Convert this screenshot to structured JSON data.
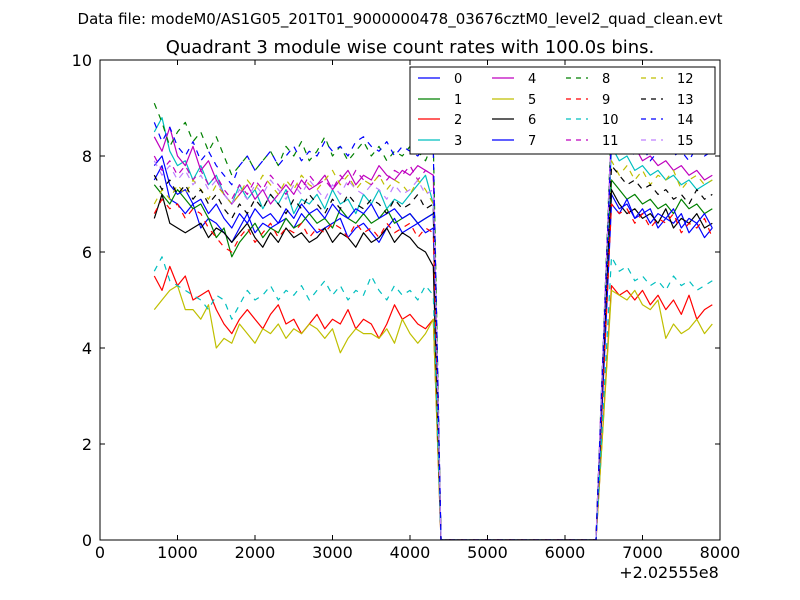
{
  "header": {
    "file_label": "Data file: modeM0/AS1G05_201T01_9000000478_03676cztM0_level2_quad_clean.evt"
  },
  "chart_data": {
    "type": "line",
    "title": "Quadrant 3 module wise count rates with 100.0s bins.",
    "xlabel": "",
    "ylabel": "",
    "x_offset_label": "+2.02555e8",
    "xlim": [
      0,
      8000
    ],
    "ylim": [
      0,
      10
    ],
    "xticks": [
      0,
      1000,
      2000,
      3000,
      4000,
      5000,
      6000,
      7000,
      8000
    ],
    "yticks": [
      0,
      2,
      4,
      6,
      8,
      10
    ],
    "legend_position": "top-right",
    "legend_columns": 4,
    "gap": {
      "drop_start": 4300,
      "zero_start": 4400,
      "zero_end": 6400,
      "rise_end": 6600
    },
    "x_segment_1": {
      "start": 700,
      "step": 100,
      "count": 37
    },
    "x_segment_2": {
      "start": 6600,
      "step": 100,
      "count": 14
    },
    "series": [
      {
        "name": "0",
        "color": "#0000ff",
        "dash": "solid",
        "seg1": [
          7.5,
          7.8,
          7.1,
          7.0,
          6.8,
          7.0,
          6.5,
          6.7,
          6.6,
          6.4,
          6.2,
          6.5,
          6.8,
          6.4,
          6.6,
          6.5,
          6.6,
          6.7,
          6.5,
          6.8,
          6.6,
          6.4,
          6.5,
          6.6,
          6.7,
          6.3,
          6.5,
          6.6,
          6.4,
          6.2,
          6.5,
          6.7,
          6.4,
          6.5,
          6.6,
          6.4,
          6.5
        ],
        "seg2": [
          7.2,
          6.9,
          7.0,
          6.7,
          6.8,
          6.9,
          6.5,
          6.7,
          6.6,
          6.8,
          6.4,
          6.6,
          6.3,
          6.5
        ]
      },
      {
        "name": "1",
        "color": "#008000",
        "dash": "solid",
        "seg1": [
          7.4,
          7.2,
          7.0,
          7.3,
          7.1,
          6.9,
          7.0,
          6.7,
          6.3,
          6.5,
          5.9,
          6.2,
          6.4,
          6.6,
          6.3,
          6.5,
          6.4,
          6.7,
          6.5,
          6.6,
          6.8,
          6.6,
          6.7,
          6.5,
          6.9,
          6.7,
          6.6,
          6.8,
          6.6,
          6.7,
          6.9,
          6.6,
          6.7,
          6.8,
          6.6,
          6.7,
          6.8
        ],
        "seg2": [
          7.5,
          7.3,
          7.1,
          7.2,
          7.0,
          7.1,
          6.9,
          7.0,
          6.8,
          7.1,
          6.9,
          7.0,
          6.8,
          6.9
        ]
      },
      {
        "name": "2",
        "color": "#ff0000",
        "dash": "solid",
        "seg1": [
          5.5,
          5.2,
          5.7,
          5.3,
          5.5,
          5.0,
          5.1,
          5.2,
          4.8,
          4.5,
          4.3,
          4.6,
          4.8,
          4.6,
          4.4,
          4.7,
          4.9,
          4.5,
          4.6,
          4.3,
          4.5,
          4.7,
          4.4,
          4.6,
          4.5,
          4.8,
          4.4,
          4.6,
          4.5,
          4.2,
          4.5,
          4.9,
          4.6,
          4.7,
          4.5,
          4.4,
          4.6
        ],
        "seg2": [
          5.3,
          5.1,
          5.2,
          5.0,
          5.2,
          4.9,
          5.1,
          4.8,
          5.0,
          4.7,
          5.1,
          4.6,
          4.8,
          4.9
        ]
      },
      {
        "name": "3",
        "color": "#00bfbf",
        "dash": "solid",
        "seg1": [
          8.5,
          8.8,
          8.1,
          7.8,
          7.9,
          7.5,
          7.8,
          7.4,
          7.6,
          7.2,
          7.0,
          7.4,
          7.1,
          7.3,
          6.9,
          7.2,
          7.0,
          7.3,
          6.8,
          7.1,
          7.0,
          7.2,
          6.9,
          7.3,
          7.0,
          7.1,
          6.8,
          7.2,
          7.0,
          7.3,
          6.9,
          7.1,
          7.0,
          7.2,
          7.4,
          7.6,
          7.0
        ],
        "seg2": [
          8.2,
          7.9,
          8.0,
          7.7,
          7.8,
          7.6,
          7.7,
          7.5,
          7.6,
          7.4,
          7.5,
          7.3,
          7.4,
          7.5
        ]
      },
      {
        "name": "4",
        "color": "#bf00bf",
        "dash": "solid",
        "seg1": [
          8.4,
          8.1,
          8.6,
          8.0,
          7.8,
          8.2,
          7.7,
          7.9,
          7.5,
          7.2,
          7.0,
          7.2,
          7.4,
          7.1,
          7.3,
          7.0,
          7.2,
          7.4,
          7.2,
          7.5,
          7.3,
          7.4,
          7.6,
          7.3,
          7.5,
          7.7,
          7.4,
          7.6,
          7.5,
          7.8,
          7.6,
          7.5,
          7.7,
          7.6,
          7.8,
          7.7,
          7.6
        ],
        "seg2": [
          8.6,
          8.3,
          8.1,
          8.2,
          7.9,
          8.0,
          7.8,
          7.9,
          7.7,
          7.8,
          7.6,
          7.7,
          7.5,
          7.6
        ]
      },
      {
        "name": "5",
        "color": "#bfbf00",
        "dash": "solid",
        "seg1": [
          4.8,
          5.0,
          5.2,
          5.3,
          4.8,
          4.8,
          4.6,
          4.9,
          4.0,
          4.2,
          4.1,
          4.5,
          4.3,
          4.1,
          4.4,
          4.3,
          4.5,
          4.2,
          4.4,
          4.3,
          4.5,
          4.4,
          4.2,
          4.4,
          3.9,
          4.2,
          4.4,
          4.3,
          4.3,
          4.2,
          4.4,
          4.1,
          4.6,
          4.3,
          4.1,
          4.3,
          4.6
        ],
        "seg2": [
          5.2,
          5.1,
          5.0,
          5.2,
          4.9,
          4.8,
          5.0,
          4.2,
          4.5,
          4.3,
          4.4,
          4.6,
          4.3,
          4.5
        ]
      },
      {
        "name": "6",
        "color": "#000000",
        "dash": "solid",
        "seg1": [
          6.7,
          7.2,
          6.6,
          6.5,
          6.4,
          6.5,
          6.6,
          6.3,
          6.5,
          6.4,
          6.2,
          6.4,
          6.6,
          6.3,
          6.1,
          6.4,
          6.2,
          6.5,
          6.3,
          6.4,
          6.2,
          6.3,
          6.5,
          6.2,
          6.4,
          6.3,
          6.1,
          6.4,
          6.2,
          6.3,
          6.5,
          6.2,
          6.4,
          6.3,
          6.1,
          6.0,
          5.7
        ],
        "seg2": [
          7.3,
          7.0,
          6.8,
          6.9,
          6.7,
          6.8,
          6.6,
          6.9,
          6.5,
          6.7,
          6.6,
          6.8,
          6.5,
          6.6
        ]
      },
      {
        "name": "7",
        "color": "#0000ff",
        "dash": "solid",
        "seg1": [
          7.8,
          8.0,
          7.4,
          7.2,
          7.3,
          7.0,
          7.1,
          6.8,
          7.0,
          6.7,
          6.5,
          6.8,
          6.6,
          6.9,
          6.7,
          6.8,
          6.6,
          6.9,
          6.7,
          7.0,
          6.8,
          6.9,
          6.7,
          7.0,
          6.8,
          6.7,
          6.9,
          6.8,
          7.0,
          6.7,
          6.8,
          6.9,
          6.7,
          6.8,
          6.6,
          6.7,
          6.8
        ],
        "seg2": [
          7.0,
          6.8,
          7.1,
          6.7,
          6.9,
          6.6,
          6.8,
          6.7,
          6.9,
          6.5,
          6.7,
          6.6,
          6.8,
          6.5
        ]
      },
      {
        "name": "8",
        "color": "#008000",
        "dash": "dashed",
        "seg1": [
          9.1,
          8.7,
          8.2,
          8.5,
          8.7,
          8.3,
          8.5,
          8.1,
          8.4,
          8.0,
          7.6,
          7.8,
          8.0,
          7.7,
          7.9,
          8.1,
          7.8,
          8.2,
          8.0,
          8.3,
          7.9,
          8.1,
          8.4,
          8.0,
          8.2,
          7.9,
          8.1,
          8.3,
          8.0,
          8.2,
          7.9,
          8.1,
          8.0,
          8.2,
          8.1,
          7.9,
          8.3
        ],
        "seg2": [
          8.8,
          9.0,
          8.7,
          8.5,
          8.6,
          8.4,
          8.5,
          8.3,
          8.4,
          8.2,
          8.3,
          8.5,
          8.2,
          8.4
        ]
      },
      {
        "name": "9",
        "color": "#ff0000",
        "dash": "dashed",
        "seg1": [
          6.8,
          7.1,
          6.9,
          7.0,
          6.7,
          6.9,
          6.8,
          6.5,
          6.3,
          6.1,
          6.0,
          6.3,
          6.5,
          6.2,
          6.4,
          6.6,
          6.3,
          6.5,
          6.4,
          6.6,
          6.3,
          6.5,
          6.4,
          6.6,
          6.5,
          6.3,
          6.6,
          6.4,
          6.5,
          6.3,
          6.6,
          6.4,
          6.5,
          6.6,
          6.3,
          6.5,
          6.4
        ],
        "seg2": [
          7.0,
          6.8,
          6.9,
          6.6,
          6.8,
          6.5,
          6.7,
          6.6,
          6.8,
          6.4,
          6.6,
          6.5,
          6.7,
          6.3
        ]
      },
      {
        "name": "10",
        "color": "#00bfbf",
        "dash": "dashed",
        "seg1": [
          5.6,
          5.9,
          5.4,
          5.3,
          5.2,
          5.1,
          5.0,
          4.8,
          5.1,
          5.0,
          4.6,
          4.9,
          5.2,
          5.0,
          5.1,
          5.3,
          5.0,
          5.2,
          5.1,
          5.3,
          5.0,
          5.2,
          5.4,
          5.1,
          5.3,
          5.0,
          5.2,
          5.1,
          5.5,
          5.2,
          5.0,
          5.3,
          5.1,
          5.2,
          5.0,
          5.3,
          5.1
        ],
        "seg2": [
          5.9,
          5.6,
          5.7,
          5.4,
          5.5,
          5.3,
          5.4,
          5.2,
          5.5,
          5.3,
          5.4,
          5.2,
          5.3,
          5.4
        ]
      },
      {
        "name": "11",
        "color": "#bf00bf",
        "dash": "dashed",
        "seg1": [
          8.0,
          7.7,
          7.9,
          7.6,
          7.8,
          7.5,
          7.7,
          7.4,
          7.6,
          7.3,
          7.1,
          7.4,
          7.2,
          7.5,
          7.3,
          7.6,
          7.4,
          7.2,
          7.5,
          7.3,
          7.6,
          7.4,
          7.5,
          7.3,
          7.6,
          7.4,
          7.7,
          7.5,
          7.4,
          7.6,
          7.5,
          7.7,
          7.6,
          7.8,
          7.5,
          7.7,
          7.6
        ],
        "seg2": [
          8.5,
          8.4,
          8.6,
          8.7,
          8.5,
          8.3,
          8.6,
          8.4,
          8.2,
          8.5,
          8.3,
          8.1,
          8.4,
          8.2
        ]
      },
      {
        "name": "12",
        "color": "#bfbf00",
        "dash": "dashed",
        "seg1": [
          7.0,
          7.3,
          7.1,
          7.4,
          7.2,
          7.5,
          7.3,
          7.1,
          7.4,
          7.2,
          7.0,
          7.2,
          7.5,
          7.3,
          7.6,
          7.4,
          7.2,
          7.5,
          7.3,
          7.6,
          7.4,
          7.3,
          7.5,
          7.7,
          7.4,
          7.6,
          7.3,
          7.5,
          7.4,
          7.6,
          7.3,
          7.5,
          7.4,
          7.2,
          7.5,
          7.3,
          7.0
        ],
        "seg2": [
          7.9,
          7.6,
          7.8,
          7.5,
          7.7,
          7.4,
          7.6,
          7.5,
          7.7,
          7.3,
          7.5,
          7.6,
          7.4,
          7.5
        ]
      },
      {
        "name": "13",
        "color": "#000000",
        "dash": "dashed",
        "seg1": [
          7.6,
          7.3,
          7.5,
          7.2,
          7.4,
          7.1,
          7.3,
          7.0,
          7.2,
          6.9,
          6.7,
          7.0,
          6.8,
          7.1,
          6.9,
          7.2,
          7.0,
          6.8,
          7.1,
          6.9,
          7.2,
          7.0,
          6.8,
          7.1,
          6.9,
          7.2,
          7.0,
          6.9,
          7.1,
          7.0,
          6.8,
          7.1,
          6.9,
          7.0,
          7.2,
          6.9,
          7.0
        ],
        "seg2": [
          7.8,
          7.6,
          7.4,
          7.5,
          7.3,
          7.4,
          7.2,
          7.3,
          7.1,
          7.2,
          7.0,
          7.3,
          7.1,
          7.2
        ]
      },
      {
        "name": "14",
        "color": "#0000ff",
        "dash": "dashed",
        "seg1": [
          8.7,
          8.3,
          8.6,
          8.2,
          8.0,
          8.3,
          7.9,
          8.1,
          7.8,
          7.6,
          7.4,
          7.8,
          8.0,
          7.7,
          7.9,
          8.1,
          7.8,
          8.0,
          8.2,
          7.9,
          8.1,
          8.0,
          8.3,
          8.1,
          8.2,
          8.0,
          8.3,
          8.4,
          8.2,
          8.1,
          8.3,
          8.0,
          8.2,
          8.1,
          8.0,
          8.2,
          8.1
        ],
        "seg2": [
          8.4,
          8.1,
          8.3,
          8.0,
          8.2,
          7.9,
          8.1,
          8.2,
          8.0,
          8.1,
          7.9,
          8.2,
          8.0,
          8.1
        ]
      },
      {
        "name": "15",
        "color": "#bf7fff",
        "dash": "dashed",
        "seg1": [
          7.9,
          7.6,
          7.8,
          7.5,
          7.7,
          7.4,
          7.6,
          7.3,
          7.5,
          7.2,
          7.0,
          7.3,
          7.1,
          7.4,
          7.2,
          7.5,
          7.3,
          7.1,
          7.4,
          7.2,
          7.5,
          7.3,
          7.1,
          7.4,
          7.2,
          7.5,
          7.3,
          7.2,
          7.4,
          7.3,
          7.1,
          7.4,
          7.2,
          7.3,
          7.5,
          7.2,
          7.3
        ],
        "seg2": [
          8.6,
          8.4,
          8.5,
          8.3,
          8.7,
          8.5,
          8.6,
          8.4,
          8.3,
          8.5,
          8.2,
          8.4,
          8.3,
          8.1
        ]
      }
    ]
  }
}
